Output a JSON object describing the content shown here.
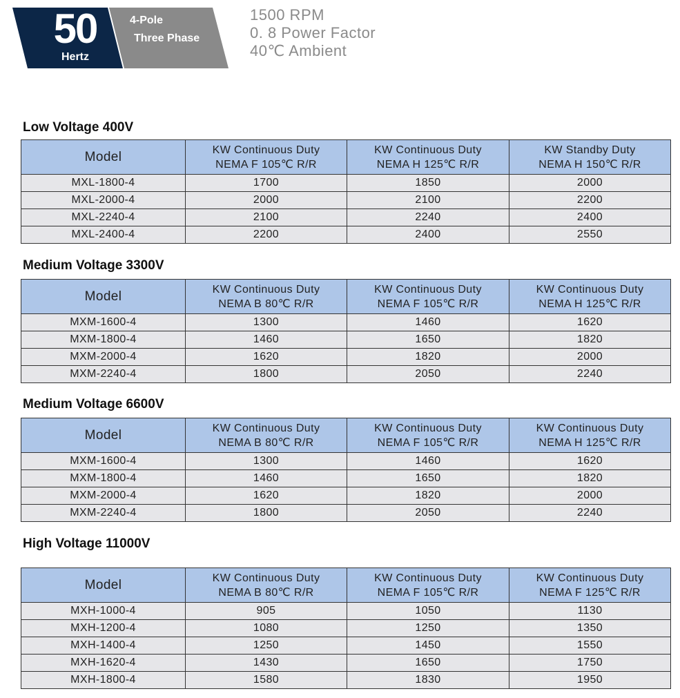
{
  "header": {
    "frequency": "50",
    "frequency_unit": "Hertz",
    "poles": "4-Pole",
    "phase": "Three Phase",
    "specs": [
      "1500 RPM",
      "0. 8  Power  Factor",
      "40℃ Ambient"
    ],
    "colors": {
      "navy": "#0c2647",
      "gray": "#8a8a8a",
      "table_header": "#aec6e8",
      "row": "#e6e6e9"
    }
  },
  "tables": [
    {
      "title": "Low Voltage  400V",
      "headers": [
        [
          "Model"
        ],
        [
          "KW Continuous Duty",
          "NEMA F  105℃ R/R"
        ],
        [
          "KW Continuous Duty",
          "NEMA H  125℃ R/R"
        ],
        [
          "KW Standby Duty",
          "NEMA H  150℃ R/R"
        ]
      ],
      "rows": [
        [
          "MXL-1800-4",
          "1700",
          "1850",
          "2000"
        ],
        [
          "MXL-2000-4",
          "2000",
          "2100",
          "2200"
        ],
        [
          "MXL-2240-4",
          "2100",
          "2240",
          "2400"
        ],
        [
          "MXL-2400-4",
          "2200",
          "2400",
          "2550"
        ]
      ]
    },
    {
      "title": "Medium Voltage  3300V",
      "headers": [
        [
          "Model"
        ],
        [
          "KW Continuous Duty",
          "NEMA B  80℃ R/R"
        ],
        [
          "KW Continuous Duty",
          "NEMA F  105℃ R/R"
        ],
        [
          "KW Continuous Duty",
          "NEMA H  125℃ R/R"
        ]
      ],
      "rows": [
        [
          "MXM-1600-4",
          "1300",
          "1460",
          "1620"
        ],
        [
          "MXM-1800-4",
          "1460",
          "1650",
          "1820"
        ],
        [
          "MXM-2000-4",
          "1620",
          "1820",
          "2000"
        ],
        [
          "MXM-2240-4",
          "1800",
          "2050",
          "2240"
        ]
      ]
    },
    {
      "title": "Medium Voltage  6600V",
      "headers": [
        [
          "Model"
        ],
        [
          "KW Continuous Duty",
          "NEMA B  80℃ R/R"
        ],
        [
          "KW Continuous Duty",
          "NEMA F  105℃ R/R"
        ],
        [
          "KW Continuous Duty",
          "NEMA H  125℃ R/R"
        ]
      ],
      "rows": [
        [
          "MXM-1600-4",
          "1300",
          "1460",
          "1620"
        ],
        [
          "MXM-1800-4",
          "1460",
          "1650",
          "1820"
        ],
        [
          "MXM-2000-4",
          "1620",
          "1820",
          "2000"
        ],
        [
          "MXM-2240-4",
          "1800",
          "2050",
          "2240"
        ]
      ]
    },
    {
      "title": "High Voltage  11000V",
      "headers": [
        [
          "Model"
        ],
        [
          "KW Continuous Duty",
          "NEMA B  80℃ R/R"
        ],
        [
          "KW Continuous Duty",
          "NEMA F  105℃ R/R"
        ],
        [
          "KW Continuous Duty",
          "NEMA F 125℃ R/R"
        ]
      ],
      "rows": [
        [
          "MXH-1000-4",
          "905",
          "1050",
          "1130"
        ],
        [
          "MXH-1200-4",
          "1080",
          "1250",
          "1350"
        ],
        [
          "MXH-1400-4",
          "1250",
          "1450",
          "1550"
        ],
        [
          "MXH-1620-4",
          "1430",
          "1650",
          "1750"
        ],
        [
          "MXH-1800-4",
          "1580",
          "1830",
          "1950"
        ]
      ]
    }
  ]
}
